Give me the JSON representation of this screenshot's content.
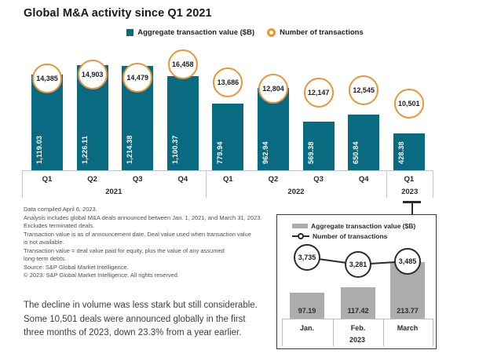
{
  "page": {
    "title": "Global M&A activity since Q1 2021"
  },
  "colors": {
    "teal": "#0A6A82",
    "orange": "#E8953A",
    "gray_bar": "#ACACAC",
    "axis_line": "#C6C6C6",
    "ink": "#1F1F1F"
  },
  "legend": {
    "value_label": "Aggregate transaction value ($B)",
    "count_label": "Number of transactions"
  },
  "chart_data": [
    {
      "id": "main",
      "type": "bar",
      "title": "Global M&A activity since Q1 2021",
      "categories": [
        "Q1",
        "Q2",
        "Q3",
        "Q4",
        "Q1",
        "Q2",
        "Q3",
        "Q4",
        "Q1"
      ],
      "year_groups": [
        {
          "label": "2021",
          "count": 4
        },
        {
          "label": "2022",
          "count": 4
        },
        {
          "label": "2023",
          "count": 1
        }
      ],
      "series": [
        {
          "name": "Aggregate transaction value ($B)",
          "mark": "bar",
          "values": [
            1119.03,
            1226.11,
            1214.38,
            1100.37,
            779.94,
            962.94,
            569.38,
            650.84,
            428.38
          ],
          "labels": [
            "1,119.03",
            "1,226.11",
            "1,214.38",
            "1,100.37",
            "779.94",
            "962.94",
            "569.38",
            "650.84",
            "428.38"
          ]
        },
        {
          "name": "Number of transactions",
          "mark": "circle",
          "values": [
            14385,
            14903,
            14479,
            16458,
            13686,
            12804,
            12147,
            12545,
            10501
          ],
          "labels": [
            "14,385",
            "14,903",
            "14,479",
            "16,458",
            "13,686",
            "12,804",
            "12,147",
            "12,545",
            "10,501"
          ]
        }
      ],
      "legend_position": "top-center",
      "grid": false
    },
    {
      "id": "inset-2023-monthly",
      "type": "bar",
      "categories": [
        "Jan.",
        "Feb.",
        "March"
      ],
      "year_groups": [
        {
          "label": "2023",
          "count": 3
        }
      ],
      "series": [
        {
          "name": "Aggregate transaction value ($B)",
          "mark": "bar",
          "values": [
            97.19,
            117.42,
            213.77
          ],
          "labels": [
            "97.19",
            "117.42",
            "213.77"
          ]
        },
        {
          "name": "Number of transactions",
          "mark": "line-circle",
          "values": [
            3735,
            3281,
            3485
          ],
          "labels": [
            "3,735",
            "3,281",
            "3,485"
          ]
        }
      ],
      "legend_position": "top-left-inside",
      "grid": false
    }
  ],
  "footnotes": {
    "lines": [
      "Data compiled April 6, 2023.",
      "Analysis includes global M&A deals announced between Jan. 1, 2021, and March 31, 2023.",
      "Excludes terminated deals.",
      "Transaction value is as of announcement date. Deal value used when transaction value",
      "is not available.",
      "Transaction value = deal value paid for equity, plus the value of any assumed",
      "long-term debts.",
      "Source: S&P Global Market Intelligence.",
      "© 2023. S&P Global Market Intelligence. All rights reserved."
    ]
  },
  "callout": {
    "lines": [
      "The decline in volume was less stark but still considerable.",
      "Some 10,501 deals were announced globally in the first",
      "three months of 2023, down 23.3% from a year earlier."
    ]
  }
}
